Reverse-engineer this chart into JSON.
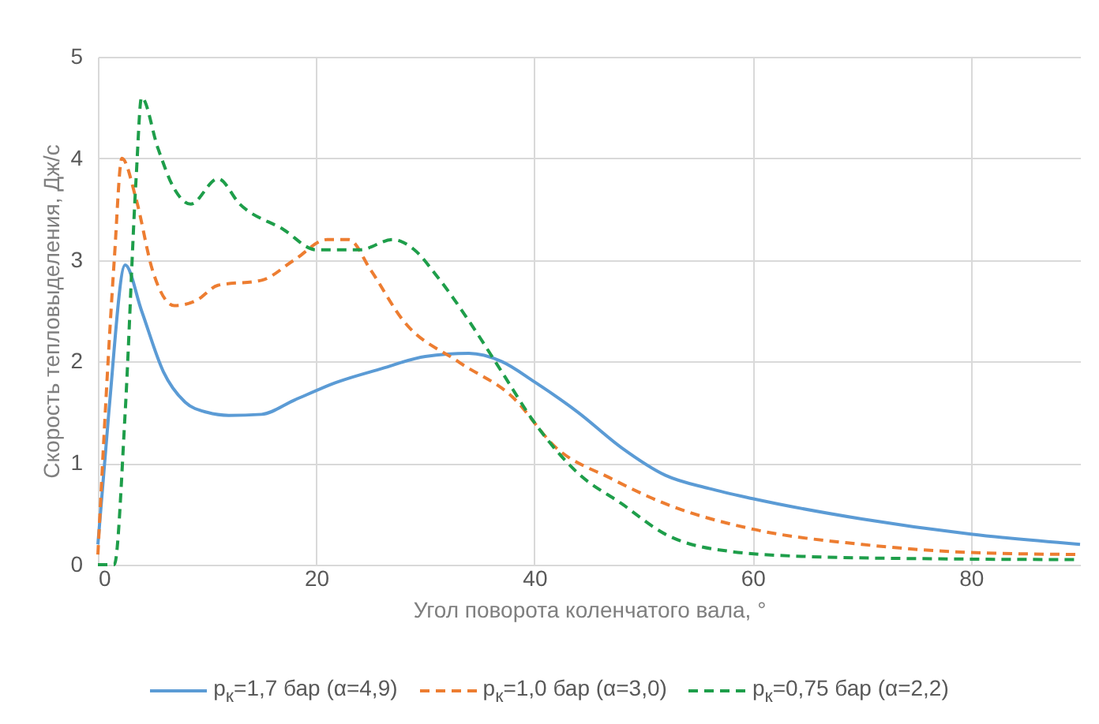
{
  "chart_data": {
    "type": "line",
    "xlabel": "Угол поворота коленчатого вала, °",
    "ylabel": "Скорость тепловыделения, Дж/с",
    "xlim": [
      0,
      90
    ],
    "xticks": [
      0,
      20,
      40,
      60,
      80
    ],
    "ylim": [
      0,
      5
    ],
    "yticks": [
      0,
      1,
      2,
      3,
      4,
      5
    ],
    "grid": true,
    "legend": "bottom",
    "marker": "none",
    "series": [
      {
        "name": "p$_{к}$=1,7 бар (α=4,9)",
        "color": "#5b9bd5",
        "line_style": "solid",
        "x": [
          0,
          1,
          2.5,
          4,
          6,
          8,
          10,
          12,
          15,
          18,
          22,
          26,
          30,
          34,
          37,
          40,
          44,
          48,
          52,
          56,
          60,
          70,
          80,
          90
        ],
        "values": [
          0.2,
          1.5,
          2.95,
          2.5,
          1.9,
          1.6,
          1.5,
          1.47,
          1.48,
          1.62,
          1.8,
          1.93,
          2.05,
          2.08,
          2.0,
          1.8,
          1.5,
          1.15,
          0.88,
          0.75,
          0.65,
          0.45,
          0.3,
          0.2
        ]
      },
      {
        "name": "p$_{к}$=1,0 бар  (α=3,0)",
        "color": "#ed7d31",
        "line_style": "dashed",
        "x": [
          0,
          1.5,
          2.2,
          3.5,
          5,
          7,
          9,
          11,
          15,
          18,
          21,
          23,
          25,
          28,
          33,
          38,
          42,
          47,
          52,
          60,
          70,
          80,
          90
        ],
        "values": [
          0.1,
          3.0,
          4.0,
          3.6,
          2.9,
          2.55,
          2.6,
          2.75,
          2.8,
          3.0,
          3.2,
          3.2,
          2.9,
          2.4,
          2.0,
          1.65,
          1.15,
          0.85,
          0.6,
          0.35,
          0.2,
          0.12,
          0.1
        ]
      },
      {
        "name": "p$_{к}$=0,75 бар (α=2,2)",
        "color": "#1e9e4a",
        "line_style": "dashed",
        "x": [
          0,
          1.5,
          2.5,
          3.5,
          4,
          5.5,
          7,
          8.5,
          11,
          13,
          17,
          20,
          24,
          27,
          29,
          31,
          34,
          37,
          40,
          44,
          48,
          52,
          58,
          65,
          75,
          90
        ],
        "values": [
          0,
          0,
          1.5,
          3.8,
          4.6,
          4.1,
          3.7,
          3.55,
          3.8,
          3.55,
          3.3,
          3.1,
          3.1,
          3.2,
          3.1,
          2.85,
          2.4,
          1.9,
          1.4,
          0.9,
          0.6,
          0.3,
          0.13,
          0.08,
          0.06,
          0.05
        ]
      }
    ]
  }
}
